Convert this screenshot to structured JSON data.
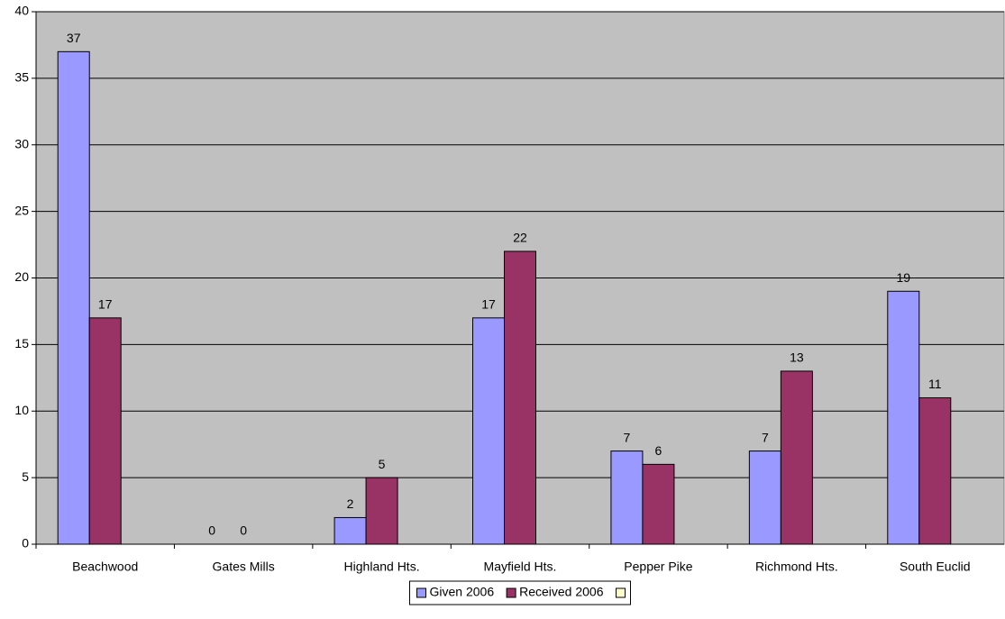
{
  "chart_data": {
    "type": "bar",
    "categories": [
      "Beachwood",
      "Gates Mills",
      "Highland Hts.",
      "Mayfield Hts.",
      "Pepper Pike",
      "Richmond Hts.",
      "South Euclid"
    ],
    "series": [
      {
        "name": "Given 2006",
        "color": "#9999FF",
        "values": [
          37,
          0,
          2,
          17,
          7,
          7,
          19
        ]
      },
      {
        "name": "Received 2006",
        "color": "#993366",
        "values": [
          17,
          0,
          5,
          22,
          6,
          13,
          11
        ]
      },
      {
        "color": "#FFFFCC",
        "values": [
          null,
          null,
          null,
          null,
          null,
          null,
          null
        ]
      }
    ],
    "ylim": [
      0,
      40
    ],
    "yticks": [
      0,
      5,
      10,
      15,
      20,
      25,
      30,
      35,
      40
    ],
    "grid": true,
    "plot_background": "#C0C0C0",
    "legend": "bottom"
  }
}
